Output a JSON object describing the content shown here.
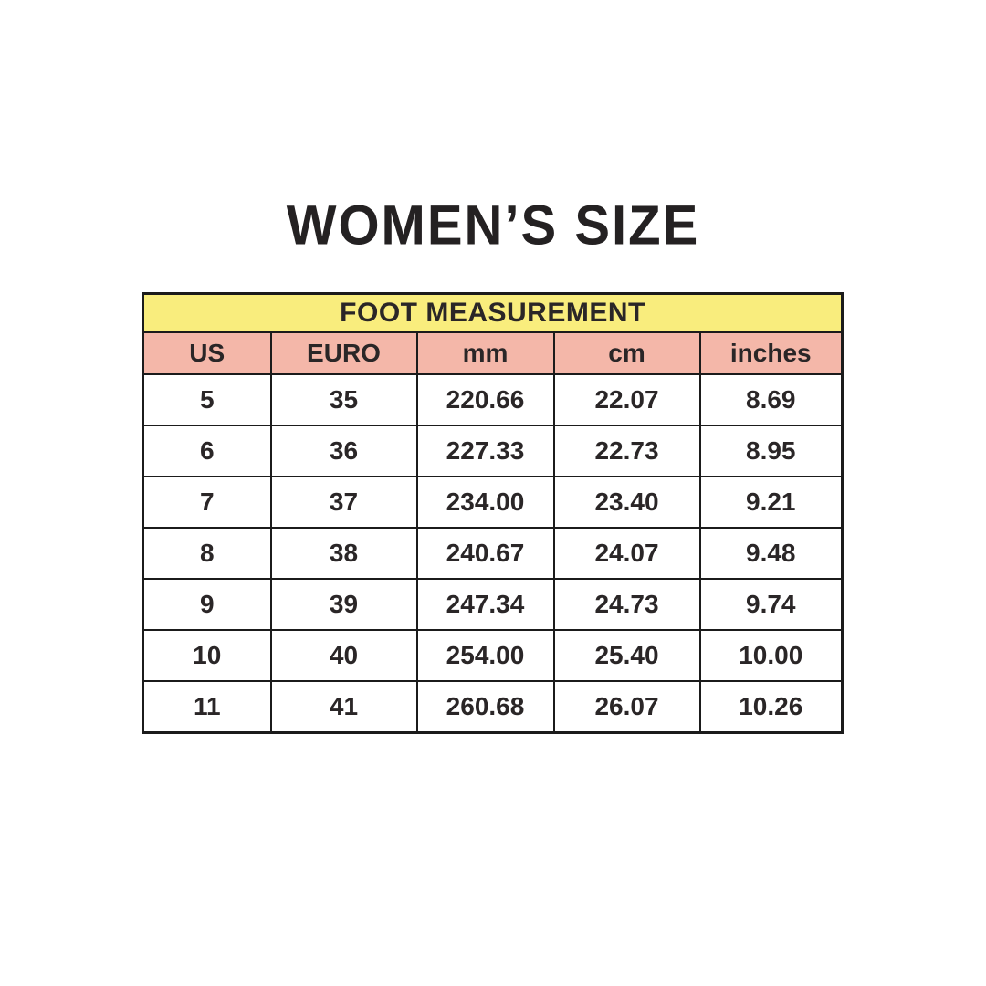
{
  "title": "WOMEN’S SIZE",
  "table": {
    "header": "FOOT MEASUREMENT",
    "columns": [
      "US",
      "EURO",
      "mm",
      "cm",
      "inches"
    ],
    "rows": [
      [
        "5",
        "35",
        "220.66",
        "22.07",
        "8.69"
      ],
      [
        "6",
        "36",
        "227.33",
        "22.73",
        "8.95"
      ],
      [
        "7",
        "37",
        "234.00",
        "23.40",
        "9.21"
      ],
      [
        "8",
        "38",
        "240.67",
        "24.07",
        "9.48"
      ],
      [
        "9",
        "39",
        "247.34",
        "24.73",
        "9.74"
      ],
      [
        "10",
        "40",
        "254.00",
        "25.40",
        "10.00"
      ],
      [
        "11",
        "41",
        "260.68",
        "26.07",
        "10.26"
      ]
    ],
    "colors": {
      "header_bg": "#F9ED7D",
      "subheader_bg": "#F4B7A9",
      "border": "#1b1b1b",
      "text": "#2a2627",
      "title_text": "#242122",
      "page_bg": "#ffffff"
    }
  }
}
